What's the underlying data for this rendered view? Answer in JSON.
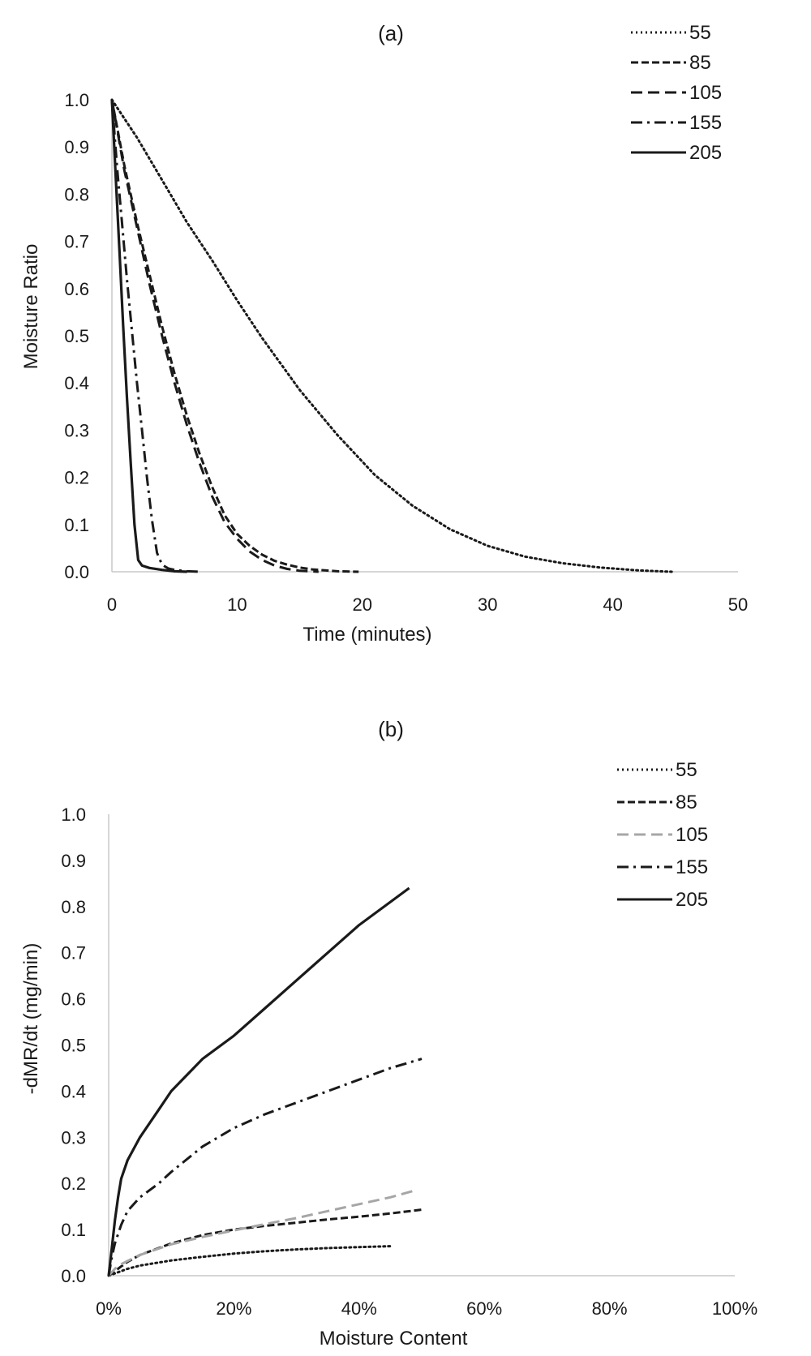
{
  "chart_data": [
    {
      "type": "line",
      "title": "(a)",
      "xlabel": "Time (minutes)",
      "ylabel": "Moisture Ratio",
      "xlim": [
        0,
        50
      ],
      "ylim": [
        0,
        1.0
      ],
      "xticks": [
        "0",
        "10",
        "20",
        "30",
        "40",
        "50"
      ],
      "yticks": [
        "0.0",
        "0.1",
        "0.2",
        "0.3",
        "0.4",
        "0.5",
        "0.6",
        "0.7",
        "0.8",
        "0.9",
        "1.0"
      ],
      "grid": false,
      "legend_position": "top-right",
      "series": [
        {
          "name": "55",
          "style": "dotted",
          "color": "#1a1a1a",
          "x": [
            0,
            2,
            4,
            6,
            8,
            10,
            12,
            15,
            18,
            21,
            24,
            27,
            30,
            33,
            36,
            39,
            42,
            44.7
          ],
          "y": [
            1.0,
            0.92,
            0.83,
            0.74,
            0.66,
            0.575,
            0.495,
            0.385,
            0.29,
            0.205,
            0.14,
            0.09,
            0.055,
            0.032,
            0.018,
            0.009,
            0.003,
            0.0
          ]
        },
        {
          "name": "85",
          "style": "short-dash",
          "color": "#1a1a1a",
          "x": [
            0,
            1,
            2,
            3,
            4,
            5,
            6,
            7,
            8,
            9,
            10,
            11,
            12,
            13,
            14,
            15,
            16,
            17,
            18,
            19.7
          ],
          "y": [
            1.0,
            0.86,
            0.74,
            0.63,
            0.52,
            0.42,
            0.33,
            0.25,
            0.18,
            0.12,
            0.08,
            0.055,
            0.036,
            0.023,
            0.015,
            0.009,
            0.005,
            0.003,
            0.001,
            0.0
          ]
        },
        {
          "name": "105",
          "style": "long-dash",
          "color": "#1a1a1a",
          "x": [
            0,
            1,
            2,
            3,
            4,
            5,
            6,
            7,
            8,
            9,
            10,
            11,
            12,
            13,
            14,
            15,
            16.5
          ],
          "y": [
            1.0,
            0.85,
            0.73,
            0.61,
            0.5,
            0.4,
            0.31,
            0.23,
            0.16,
            0.105,
            0.07,
            0.043,
            0.025,
            0.013,
            0.006,
            0.002,
            0.0
          ]
        },
        {
          "name": "155",
          "style": "dash-dot",
          "color": "#1a1a1a",
          "x": [
            0,
            0.4,
            0.8,
            1.2,
            1.6,
            2.0,
            2.4,
            2.8,
            3.2,
            3.6,
            4.0,
            4.5,
            5.0,
            6.0,
            7.0
          ],
          "y": [
            1.0,
            0.86,
            0.74,
            0.62,
            0.51,
            0.4,
            0.3,
            0.2,
            0.11,
            0.04,
            0.015,
            0.007,
            0.004,
            0.001,
            0.0
          ]
        },
        {
          "name": "205",
          "style": "solid",
          "color": "#1a1a1a",
          "x": [
            0,
            0.3,
            0.6,
            0.9,
            1.2,
            1.5,
            1.8,
            2.1,
            2.4,
            3.0,
            4.0,
            5.0,
            6.0
          ],
          "y": [
            1.0,
            0.84,
            0.68,
            0.52,
            0.37,
            0.23,
            0.1,
            0.025,
            0.013,
            0.008,
            0.004,
            0.001,
            0.0
          ]
        }
      ]
    },
    {
      "type": "line",
      "title": "(b)",
      "xlabel": "Moisture Content",
      "ylabel": "-dMR/dt (mg/min)",
      "xlim": [
        0,
        100
      ],
      "ylim": [
        0,
        1.0
      ],
      "xticks": [
        "0%",
        "20%",
        "40%",
        "60%",
        "80%",
        "100%"
      ],
      "yticks": [
        "0.0",
        "0.1",
        "0.2",
        "0.3",
        "0.4",
        "0.5",
        "0.6",
        "0.7",
        "0.8",
        "0.9",
        "1.0"
      ],
      "grid": false,
      "legend_position": "top-right",
      "series": [
        {
          "name": "55",
          "style": "dotted",
          "color": "#1a1a1a",
          "x": [
            0,
            1,
            3,
            5,
            10,
            15,
            20,
            25,
            30,
            35,
            40,
            45
          ],
          "y": [
            0.0,
            0.005,
            0.015,
            0.022,
            0.033,
            0.041,
            0.048,
            0.053,
            0.057,
            0.06,
            0.062,
            0.064
          ]
        },
        {
          "name": "85",
          "style": "short-dash",
          "color": "#1a1a1a",
          "x": [
            0,
            1,
            2,
            3,
            5,
            10,
            15,
            20,
            25,
            30,
            35,
            40,
            45,
            50
          ],
          "y": [
            0.0,
            0.01,
            0.02,
            0.03,
            0.045,
            0.07,
            0.088,
            0.1,
            0.108,
            0.115,
            0.122,
            0.128,
            0.135,
            0.143
          ]
        },
        {
          "name": "105",
          "style": "long-dash",
          "color": "#a6a6a6",
          "x": [
            0,
            1,
            2,
            3,
            5,
            10,
            15,
            20,
            25,
            30,
            35,
            40,
            45,
            49
          ],
          "y": [
            0.0,
            0.015,
            0.025,
            0.032,
            0.045,
            0.068,
            0.084,
            0.098,
            0.112,
            0.125,
            0.14,
            0.155,
            0.17,
            0.185
          ]
        },
        {
          "name": "155",
          "style": "dash-dot",
          "color": "#1a1a1a",
          "x": [
            0,
            0.5,
            1,
            2,
            3,
            5,
            8,
            10,
            15,
            20,
            25,
            30,
            35,
            40,
            45,
            50
          ],
          "y": [
            0.0,
            0.04,
            0.07,
            0.11,
            0.14,
            0.17,
            0.2,
            0.225,
            0.28,
            0.32,
            0.35,
            0.375,
            0.4,
            0.425,
            0.45,
            0.47
          ]
        },
        {
          "name": "205",
          "style": "solid",
          "color": "#1a1a1a",
          "x": [
            0,
            0.5,
            1,
            1.5,
            2,
            3,
            5,
            8,
            10,
            15,
            20,
            25,
            30,
            35,
            40,
            45,
            48
          ],
          "y": [
            0.0,
            0.06,
            0.12,
            0.17,
            0.21,
            0.25,
            0.3,
            0.36,
            0.4,
            0.47,
            0.52,
            0.58,
            0.64,
            0.7,
            0.76,
            0.81,
            0.84
          ]
        }
      ]
    }
  ]
}
